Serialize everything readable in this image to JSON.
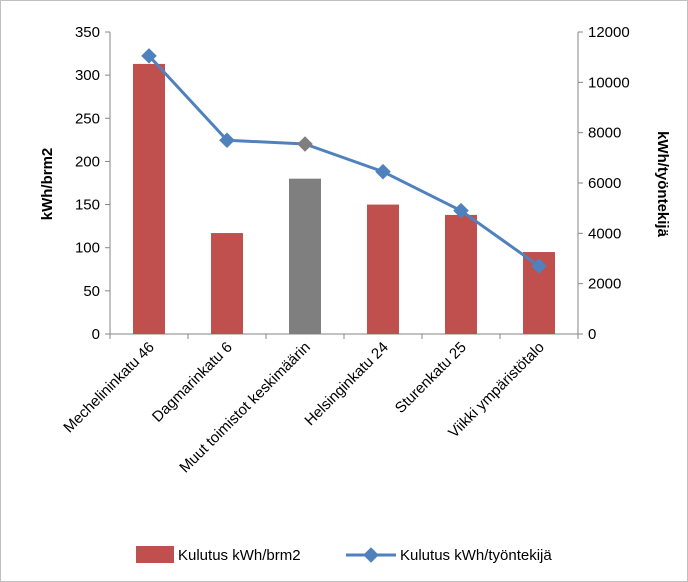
{
  "chart_data": {
    "type": "bar",
    "categories": [
      "Mechelininkatu 46",
      "Dagmarinkatu 6",
      "Muut toimistot keskimäärin",
      "Helsinginkatu 24",
      "Sturenkatu 25",
      "Viikki ympäristötalo"
    ],
    "series": [
      {
        "name": "Kulutus kWh/brm2",
        "type": "bar",
        "axis": "left",
        "values": [
          313,
          117,
          180,
          150,
          138,
          95
        ],
        "color": "#c0504d",
        "highlight_color": "#7f7f7f",
        "highlight_index": 2
      },
      {
        "name": "Kulutus kWh/työntekijä",
        "type": "line",
        "axis": "right",
        "values": [
          11050,
          7700,
          7550,
          6450,
          4900,
          2700
        ],
        "color": "#4f81bd"
      }
    ],
    "ylabel": "kWh/brm2",
    "y2label": "kWh/työntekijä",
    "ylim": [
      0,
      350
    ],
    "y2lim": [
      0,
      12000
    ],
    "yticks": [
      "0",
      "50",
      "100",
      "150",
      "200",
      "250",
      "300",
      "350"
    ],
    "y2ticks": [
      "0",
      "2000",
      "4000",
      "6000",
      "8000",
      "10000",
      "12000"
    ],
    "grid": false,
    "legend_position": "bottom"
  }
}
